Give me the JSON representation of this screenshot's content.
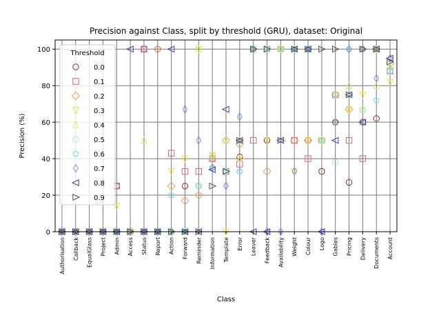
{
  "chart_data": {
    "type": "scatter",
    "title": "Precision against Class, split by threshold (GRU), dataset: Original",
    "xlabel": "Class",
    "ylabel": "Precision (%)",
    "ylim": [
      0,
      105
    ],
    "yticks": [
      "0",
      "20",
      "40",
      "60",
      "80",
      "100"
    ],
    "grid": true,
    "legend": {
      "title": "Threshold",
      "placement": "top-left"
    },
    "categories": [
      "Authorisation",
      "Callback",
      "EqualGlass",
      "Project",
      "Admin",
      "Access",
      "Status",
      "Report",
      "Action",
      "Forward",
      "Reminder",
      "Information",
      "Template",
      "Error",
      "Leaver",
      "Feedback",
      "Availability",
      "Weight",
      "Colour",
      "Logo",
      "Gables",
      "Pricing",
      "Delivery",
      "Documents",
      "Account"
    ],
    "series": [
      {
        "name": "0.0",
        "color": "#8c2d2d",
        "marker": "circle",
        "values": [
          0,
          0,
          0,
          0,
          25,
          0,
          100,
          100,
          0,
          25,
          25,
          40,
          33,
          41,
          100,
          50,
          100,
          50,
          50,
          33,
          60,
          27,
          60,
          62,
          88
        ]
      },
      {
        "name": "0.1",
        "color": "#e0607e",
        "marker": "square",
        "values": [
          0,
          0,
          0,
          0,
          25,
          0,
          100,
          0,
          43,
          33,
          33,
          40,
          33,
          37,
          50,
          100,
          100,
          50,
          40,
          50,
          75,
          50,
          40,
          100,
          88
        ]
      },
      {
        "name": "0.2",
        "color": "#f0a060",
        "marker": "diamond",
        "values": [
          0,
          0,
          0,
          0,
          0,
          0,
          0,
          100,
          25,
          17,
          20,
          40,
          50,
          48,
          100,
          33,
          100,
          50,
          50,
          50,
          75,
          67,
          100,
          100,
          92
        ]
      },
      {
        "name": "0.3",
        "color": "#f0e040",
        "marker": "triangle-down",
        "values": [
          0,
          0,
          0,
          0,
          14,
          0,
          0,
          0,
          33,
          40,
          100,
          42,
          0,
          40,
          100,
          50,
          100,
          33,
          50,
          50,
          75,
          67,
          75,
          100,
          82
        ]
      },
      {
        "name": "0.4",
        "color": "#d8e87a",
        "marker": "triangle-up",
        "values": [
          0,
          0,
          0,
          0,
          0,
          0,
          50,
          0,
          0,
          0,
          100,
          42,
          50,
          50,
          100,
          100,
          100,
          100,
          100,
          50,
          60,
          80,
          67,
          80,
          90
        ]
      },
      {
        "name": "0.5",
        "color": "#a8f0b8",
        "marker": "circle",
        "values": [
          0,
          0,
          0,
          0,
          0,
          0,
          0,
          0,
          0,
          0,
          25,
          42,
          33,
          33,
          100,
          100,
          100,
          100,
          100,
          50,
          38,
          75,
          67,
          100,
          88
        ]
      },
      {
        "name": "0.6",
        "color": "#70d8f0",
        "marker": "pentagon",
        "values": [
          0,
          0,
          0,
          0,
          0,
          0,
          0,
          0,
          20,
          0,
          25,
          35,
          33,
          33,
          100,
          100,
          100,
          100,
          100,
          50,
          75,
          100,
          100,
          72,
          88
        ]
      },
      {
        "name": "0.7",
        "color": "#7a8cd8",
        "marker": "thin-diamond",
        "values": [
          0,
          0,
          0,
          0,
          0,
          0,
          0,
          0,
          0,
          67,
          50,
          35,
          25,
          63,
          100,
          0,
          0,
          33,
          100,
          0,
          60,
          100,
          100,
          84,
          95
        ]
      },
      {
        "name": "0.8",
        "color": "#404098",
        "marker": "triangle-left",
        "values": [
          0,
          0,
          0,
          0,
          0,
          100,
          0,
          0,
          100,
          0,
          0,
          34,
          67,
          50,
          0,
          0,
          50,
          100,
          100,
          0,
          50,
          75,
          60,
          100,
          95
        ]
      },
      {
        "name": "0.9",
        "color": "#505050",
        "marker": "triangle-right",
        "values": [
          0,
          0,
          0,
          0,
          0,
          0,
          0,
          0,
          0,
          0,
          0,
          25,
          33,
          50,
          100,
          100,
          50,
          100,
          100,
          100,
          100,
          75,
          100,
          100,
          93
        ]
      }
    ]
  }
}
